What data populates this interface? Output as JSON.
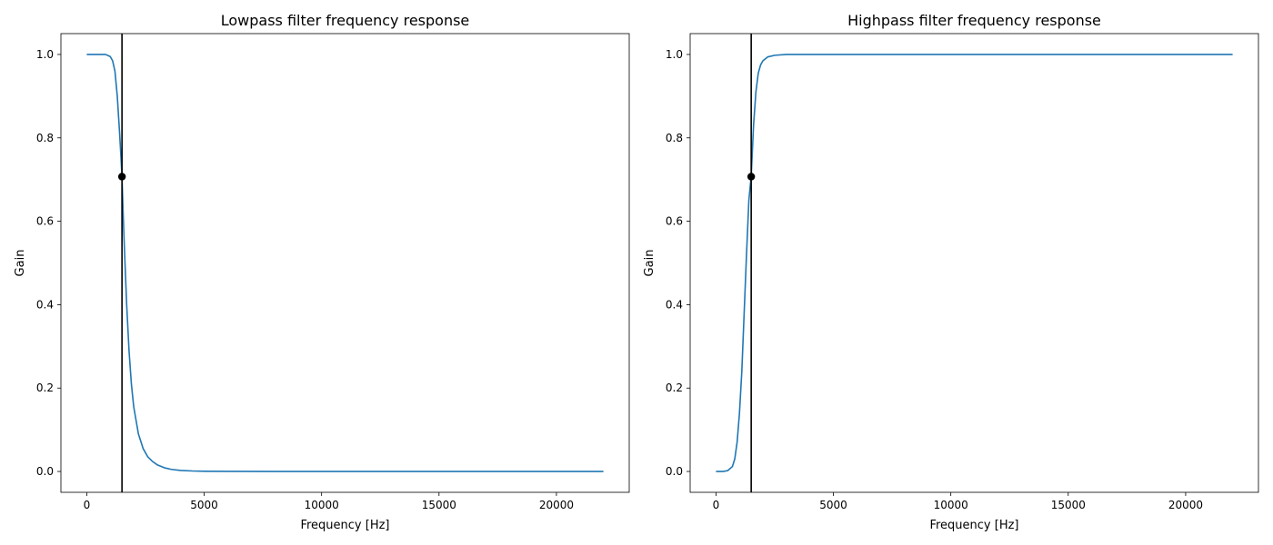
{
  "chart_data": [
    {
      "type": "line",
      "title": "Lowpass filter frequency response",
      "xlabel": "Frequency [Hz]",
      "ylabel": "Gain",
      "xlim": [
        -1100,
        23100
      ],
      "ylim": [
        -0.05,
        1.05
      ],
      "xticks": [
        0,
        5000,
        10000,
        15000,
        20000
      ],
      "yticks": [
        0.0,
        0.2,
        0.4,
        0.6,
        0.8,
        1.0
      ],
      "series_color": "#1f77b4",
      "series": [
        {
          "x": [
            0,
            300,
            600,
            800,
            1000,
            1100,
            1200,
            1300,
            1400,
            1450,
            1500,
            1550,
            1600,
            1700,
            1800,
            1900,
            2000,
            2200,
            2400,
            2600,
            2800,
            3000,
            3300,
            3600,
            4000,
            4500,
            5000,
            6000,
            8000,
            10000,
            12000,
            15000,
            18000,
            20000,
            22000
          ],
          "y": [
            1.0,
            1.0,
            1.0,
            1.0,
            0.995,
            0.985,
            0.96,
            0.9,
            0.81,
            0.76,
            0.707,
            0.62,
            0.54,
            0.4,
            0.29,
            0.21,
            0.155,
            0.09,
            0.055,
            0.035,
            0.024,
            0.016,
            0.009,
            0.005,
            0.0025,
            0.0012,
            0.0006,
            0.0002,
            0.0,
            0.0,
            0.0,
            0.0,
            0.0,
            0.0,
            0.0
          ]
        }
      ],
      "cutoff": {
        "x": 1500,
        "y": 0.707
      }
    },
    {
      "type": "line",
      "title": "Highpass filter frequency response",
      "xlabel": "Frequency [Hz]",
      "ylabel": "Gain",
      "xlim": [
        -1100,
        23100
      ],
      "ylim": [
        -0.05,
        1.05
      ],
      "xticks": [
        0,
        5000,
        10000,
        15000,
        20000
      ],
      "yticks": [
        0.0,
        0.2,
        0.4,
        0.6,
        0.8,
        1.0
      ],
      "series_color": "#1f77b4",
      "series": [
        {
          "x": [
            0,
            300,
            500,
            700,
            800,
            900,
            1000,
            1100,
            1200,
            1300,
            1400,
            1450,
            1500,
            1600,
            1700,
            1800,
            1900,
            2000,
            2200,
            2500,
            3000,
            4000,
            6000,
            10000,
            15000,
            20000,
            22000
          ],
          "y": [
            0.0,
            0.0,
            0.002,
            0.012,
            0.03,
            0.07,
            0.14,
            0.24,
            0.38,
            0.52,
            0.65,
            0.68,
            0.707,
            0.83,
            0.91,
            0.955,
            0.975,
            0.985,
            0.994,
            0.998,
            1.0,
            1.0,
            1.0,
            1.0,
            1.0,
            1.0,
            1.0
          ]
        }
      ],
      "cutoff": {
        "x": 1500,
        "y": 0.707
      }
    }
  ]
}
